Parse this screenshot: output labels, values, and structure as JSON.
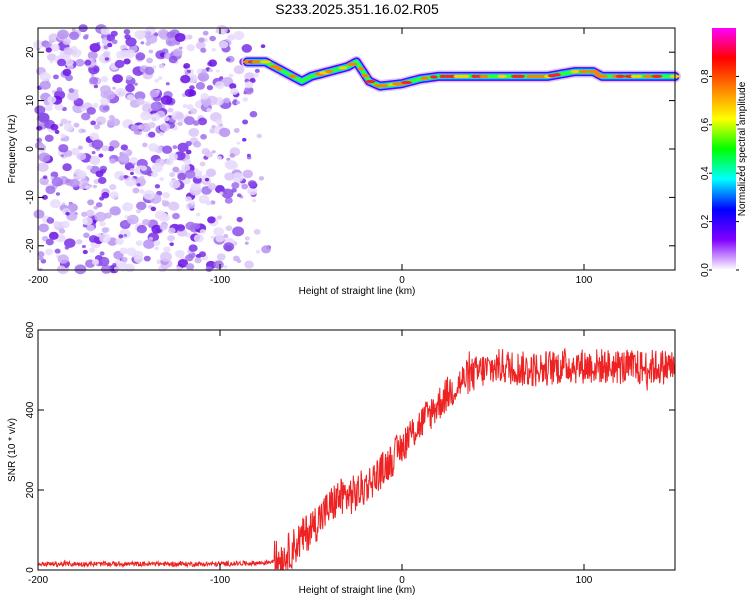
{
  "title": "S233.2025.351.16.02.R05",
  "chart_data": [
    {
      "type": "heatmap",
      "name": "spectrogram",
      "xlabel": "Height of straight line (km)",
      "ylabel": "Frequency (Hz)",
      "xlim": [
        -200,
        150
      ],
      "ylim": [
        -25,
        25
      ],
      "xticks": [
        -200,
        -100,
        0,
        100
      ],
      "yticks": [
        -20,
        -10,
        0,
        10,
        20
      ],
      "colorbar": {
        "label": "Normalized spectral amplitude",
        "range": [
          0,
          1
        ],
        "ticks": [
          0.0,
          0.2,
          0.4,
          0.6,
          0.8
        ],
        "tick_labels": [
          "0.0",
          "0.2",
          "0.4",
          "0.6",
          "0.8"
        ],
        "colors": [
          "#ffffff",
          "#8000ff",
          "#0000ff",
          "#00ffff",
          "#00ff00",
          "#ffff00",
          "#ff8000",
          "#ff0000",
          "#ff00ff"
        ]
      },
      "ridge": {
        "description_x": [
          -85,
          -75,
          -65,
          -55,
          -50,
          -40,
          -30,
          -25,
          -18,
          -12,
          0,
          10,
          20,
          40,
          60,
          80,
          95,
          105,
          110,
          120,
          130,
          150
        ],
        "frequency_hz": [
          18,
          18,
          16,
          14,
          15,
          16,
          17,
          18,
          14,
          13,
          13.5,
          14.5,
          15,
          15,
          15,
          15,
          16,
          16,
          15,
          15,
          15,
          15
        ]
      }
    },
    {
      "type": "line",
      "name": "snr",
      "xlabel": "Height of straight line (km)",
      "ylabel": "SNR (10 * v/v)",
      "xlim": [
        -200,
        150
      ],
      "ylim": [
        0,
        600
      ],
      "xticks": [
        -200,
        -100,
        0,
        100
      ],
      "yticks": [
        0,
        200,
        400,
        600
      ],
      "color": "#ee2222",
      "anchors_x": [
        -200,
        -150,
        -100,
        -75,
        -65,
        -55,
        -45,
        -35,
        -25,
        -15,
        -5,
        5,
        15,
        25,
        35,
        45,
        55,
        70,
        90,
        110,
        130,
        150
      ],
      "anchors_y": [
        15,
        15,
        15,
        18,
        30,
        80,
        130,
        180,
        190,
        230,
        280,
        340,
        390,
        440,
        480,
        500,
        510,
        500,
        510,
        510,
        505,
        510
      ],
      "noise_amplitude": 45
    }
  ]
}
